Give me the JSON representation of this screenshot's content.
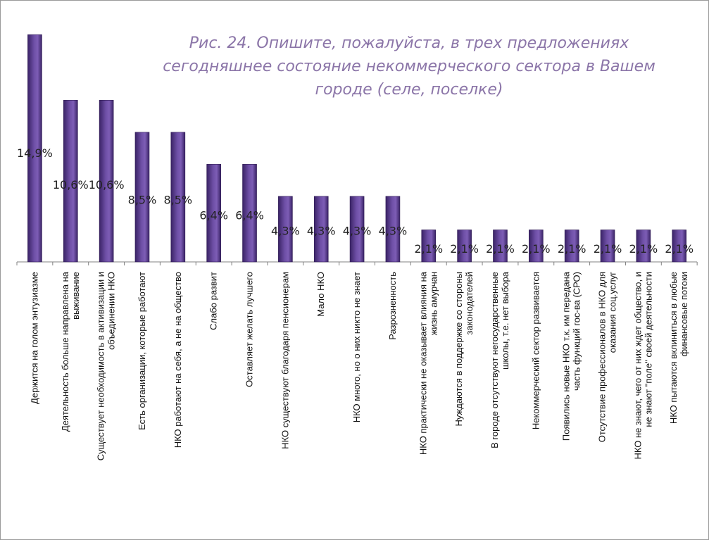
{
  "chart_data": {
    "type": "bar",
    "title": "Рис. 24. Опишите, пожалуйста, в трех предложениях сегодняшнее состояние некоммерческого сектора в Вашем городе (селе, поселке)",
    "categories": [
      [
        "Держится на голом энтузиазме"
      ],
      [
        "Деятельность больше направлена на",
        "выживание"
      ],
      [
        "Существует необходимость в активизации и",
        "объединении НКО"
      ],
      [
        "Есть организации, которые работают"
      ],
      [
        "НКО работают на себя, а не на общество"
      ],
      [
        "Слабо развит"
      ],
      [
        "Оставляет желать лучшего"
      ],
      [
        "НКО существуют благодаря пенсионерам"
      ],
      [
        "Мало НКО"
      ],
      [
        "НКО много, но о них никто не знает"
      ],
      [
        "Разрозненность"
      ],
      [
        "НКО практически не оказывает влияния на",
        "жизнь амурчан"
      ],
      [
        "Нуждаются в поддержке со стороны",
        "законодателей"
      ],
      [
        "В городе отсутствуют негосударственные",
        "школы, т.е. нет выбора"
      ],
      [
        "Некоммерческий сектор развивается"
      ],
      [
        "Появились новые НКО т.к. им передана",
        "часть функций гос-ва (СРО)"
      ],
      [
        "Отсутствие профессионалов в НКО для",
        "оказания соц.услуг"
      ],
      [
        "НКО не знают, чего от них ждет общество, и",
        "не знают \"поле\" своей деятельности"
      ],
      [
        "НКО пытаются вклиниться в любые",
        "финансовые потоки"
      ]
    ],
    "values": [
      14.9,
      10.6,
      10.6,
      8.5,
      8.5,
      6.4,
      6.4,
      4.3,
      4.3,
      4.3,
      4.3,
      2.1,
      2.1,
      2.1,
      2.1,
      2.1,
      2.1,
      2.1,
      2.1
    ],
    "value_labels": [
      "14,9%",
      "10,6%",
      "10,6%",
      "8,5%",
      "8,5%",
      "6,4%",
      "6,4%",
      "4,3%",
      "4,3%",
      "4,3%",
      "4,3%",
      "2,1%",
      "2,1%",
      "2,1%",
      "2,1%",
      "2,1%",
      "2,1%",
      "2,1%",
      "2,1%"
    ],
    "ylim": [
      0,
      15.0
    ],
    "grid": false,
    "legend": "none",
    "bar_color": "#5b3f8c"
  }
}
